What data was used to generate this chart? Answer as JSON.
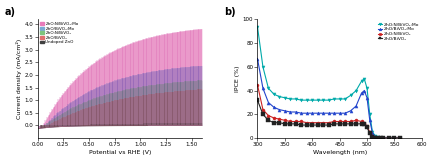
{
  "panel_a": {
    "title": "a)",
    "xlabel": "Potential vs RHE (V)",
    "ylabel": "Current density (mA/cm²)",
    "xlim": [
      0.0,
      1.6
    ],
    "ylim": [
      -0.5,
      4.2
    ],
    "xticks": [
      0.0,
      0.25,
      0.5,
      0.75,
      1.0,
      1.25,
      1.5
    ],
    "yticks": [
      0.0,
      0.5,
      1.0,
      1.5,
      2.0,
      2.5,
      3.0,
      3.5,
      4.0
    ],
    "legend": [
      {
        "label": "ZnO:N/BiVO₄:Mo",
        "color": "#e87bba"
      },
      {
        "label": "ZnO/BiVO₄:Mo",
        "color": "#7aaad4"
      },
      {
        "label": "ZnO:N/BiVO₄",
        "color": "#7ec47e"
      },
      {
        "label": "ZnO/BiVO₄",
        "color": "#e07070"
      },
      {
        "label": "Undoped ZnO",
        "color": "#404040"
      }
    ],
    "fill_colors": [
      "#e87bba",
      "#7aaad4",
      "#7ec47e",
      "#e07070",
      "#555555"
    ],
    "line_colors": [
      "#cc3399",
      "#2255bb",
      "#339933",
      "#cc2222",
      "#222222"
    ],
    "curves": [
      {
        "j_max": 4.05,
        "v_on": 0.05,
        "k": 1.9
      },
      {
        "j_max": 2.55,
        "v_on": 0.07,
        "k": 1.75
      },
      {
        "j_max": 1.95,
        "v_on": 0.07,
        "k": 1.65
      },
      {
        "j_max": 1.62,
        "v_on": 0.1,
        "k": 1.45
      },
      {
        "j_max": 0.13,
        "v_on": 0.18,
        "k": 1.1
      }
    ],
    "dark_j": -0.12,
    "dark_decay": 5.0,
    "n_stripes": 100
  },
  "panel_b": {
    "title": "b)",
    "xlabel": "Wavelength (nm)",
    "ylabel": "IPCE (%)",
    "xlim": [
      300,
      600
    ],
    "ylim": [
      0,
      100
    ],
    "xticks": [
      300,
      350,
      400,
      450,
      500,
      550,
      600
    ],
    "yticks": [
      0,
      20,
      40,
      60,
      80,
      100
    ],
    "series": [
      {
        "label": "ZnO:N/BiVO₄:Mo",
        "color": "#00aaaa",
        "marker": "v",
        "x": [
          300,
          310,
          320,
          330,
          340,
          350,
          360,
          370,
          380,
          390,
          400,
          410,
          420,
          430,
          440,
          450,
          460,
          470,
          480,
          490,
          495,
          500,
          505,
          510,
          515,
          520,
          525,
          530,
          540,
          550,
          560
        ],
        "y": [
          94,
          60,
          42,
          37,
          35,
          34,
          33,
          33,
          32,
          32,
          32,
          32,
          32,
          32,
          33,
          33,
          33,
          36,
          40,
          48,
          50,
          42,
          20,
          5,
          2,
          1,
          0,
          0,
          0,
          0,
          0
        ]
      },
      {
        "label": "ZnO/BiVO₄:Mo",
        "color": "#2244cc",
        "marker": "^",
        "x": [
          300,
          310,
          320,
          330,
          340,
          350,
          360,
          370,
          380,
          390,
          400,
          410,
          420,
          430,
          440,
          450,
          460,
          470,
          480,
          490,
          495,
          500,
          505,
          510,
          515,
          520,
          525,
          530,
          540,
          550,
          560
        ],
        "y": [
          67,
          42,
          30,
          26,
          24,
          23,
          22,
          22,
          21,
          21,
          21,
          21,
          21,
          21,
          21,
          21,
          21,
          23,
          27,
          38,
          40,
          34,
          15,
          4,
          1,
          0,
          0,
          0,
          0,
          0,
          0
        ]
      },
      {
        "label": "ZnO:N/BiVO₄",
        "color": "#cc2222",
        "marker": "o",
        "x": [
          300,
          310,
          320,
          330,
          340,
          350,
          360,
          370,
          380,
          390,
          400,
          410,
          420,
          430,
          440,
          450,
          460,
          470,
          480,
          490,
          495,
          500,
          505,
          510,
          515,
          520,
          525,
          530,
          540,
          550,
          560
        ],
        "y": [
          45,
          24,
          19,
          17,
          16,
          15,
          14,
          14,
          14,
          13,
          13,
          13,
          13,
          13,
          14,
          14,
          14,
          14,
          15,
          14,
          13,
          10,
          5,
          2,
          1,
          0,
          0,
          0,
          0,
          0,
          0
        ]
      },
      {
        "label": "ZnO/BiVO₄",
        "color": "#222222",
        "marker": "s",
        "x": [
          300,
          310,
          320,
          330,
          340,
          350,
          360,
          370,
          380,
          390,
          400,
          410,
          420,
          430,
          440,
          450,
          460,
          470,
          480,
          490,
          495,
          500,
          505,
          510,
          515,
          520,
          525,
          530,
          540,
          550,
          560
        ],
        "y": [
          32,
          20,
          15,
          13,
          13,
          12,
          12,
          12,
          11,
          11,
          11,
          11,
          11,
          11,
          12,
          12,
          12,
          12,
          12,
          12,
          12,
          9,
          4,
          1,
          0,
          0,
          0,
          0,
          0,
          0,
          0
        ]
      }
    ]
  }
}
